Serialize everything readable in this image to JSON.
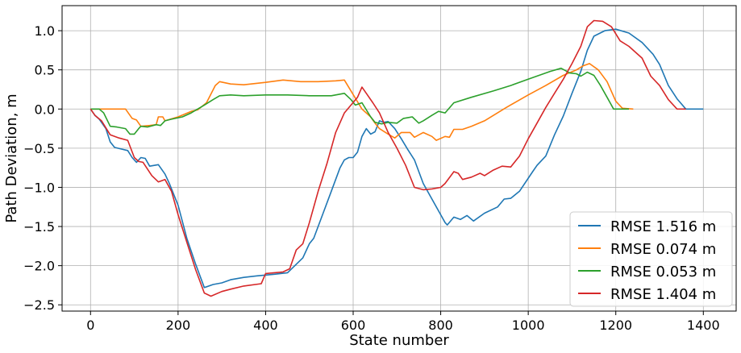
{
  "chart_data": {
    "type": "line",
    "title": "",
    "xlabel": "State number",
    "ylabel": "Path Deviation, m",
    "xlim": [
      -65,
      1475
    ],
    "ylim": [
      -2.58,
      1.32
    ],
    "xticks": [
      0,
      200,
      400,
      600,
      800,
      1000,
      1200,
      1400
    ],
    "yticks": [
      1.0,
      0.5,
      0.0,
      -0.5,
      -1.0,
      -1.5,
      -2.0,
      -2.5
    ],
    "xtick_labels": [
      "0",
      "200",
      "400",
      "600",
      "800",
      "1000",
      "1200",
      "1400"
    ],
    "ytick_labels": [
      "1.0",
      "0.5",
      "0.0",
      "−0.5",
      "−1.0",
      "−1.5",
      "−2.0",
      "−2.5"
    ],
    "grid": true,
    "legend_position": "bottom-right",
    "series": [
      {
        "name": "RMSE 1.516 m",
        "color": "#1f77b4",
        "points": [
          [
            0,
            0
          ],
          [
            10,
            -0.08
          ],
          [
            20,
            -0.13
          ],
          [
            35,
            -0.25
          ],
          [
            45,
            -0.42
          ],
          [
            55,
            -0.49
          ],
          [
            85,
            -0.53
          ],
          [
            95,
            -0.62
          ],
          [
            105,
            -0.68
          ],
          [
            115,
            -0.62
          ],
          [
            125,
            -0.63
          ],
          [
            135,
            -0.73
          ],
          [
            155,
            -0.71
          ],
          [
            170,
            -0.83
          ],
          [
            180,
            -0.95
          ],
          [
            200,
            -1.23
          ],
          [
            220,
            -1.65
          ],
          [
            240,
            -1.98
          ],
          [
            260,
            -2.28
          ],
          [
            280,
            -2.24
          ],
          [
            300,
            -2.22
          ],
          [
            320,
            -2.18
          ],
          [
            350,
            -2.15
          ],
          [
            380,
            -2.13
          ],
          [
            420,
            -2.11
          ],
          [
            450,
            -2.09
          ],
          [
            485,
            -1.9
          ],
          [
            500,
            -1.72
          ],
          [
            510,
            -1.65
          ],
          [
            530,
            -1.35
          ],
          [
            550,
            -1.05
          ],
          [
            570,
            -0.75
          ],
          [
            580,
            -0.65
          ],
          [
            590,
            -0.62
          ],
          [
            600,
            -0.62
          ],
          [
            610,
            -0.55
          ],
          [
            620,
            -0.35
          ],
          [
            630,
            -0.25
          ],
          [
            640,
            -0.32
          ],
          [
            650,
            -0.29
          ],
          [
            660,
            -0.15
          ],
          [
            670,
            -0.17
          ],
          [
            680,
            -0.16
          ],
          [
            695,
            -0.25
          ],
          [
            710,
            -0.38
          ],
          [
            725,
            -0.52
          ],
          [
            740,
            -0.65
          ],
          [
            760,
            -0.95
          ],
          [
            780,
            -1.15
          ],
          [
            800,
            -1.35
          ],
          [
            810,
            -1.45
          ],
          [
            815,
            -1.48
          ],
          [
            830,
            -1.38
          ],
          [
            845,
            -1.41
          ],
          [
            860,
            -1.36
          ],
          [
            875,
            -1.43
          ],
          [
            900,
            -1.33
          ],
          [
            930,
            -1.25
          ],
          [
            945,
            -1.15
          ],
          [
            960,
            -1.14
          ],
          [
            980,
            -1.05
          ],
          [
            1010,
            -0.8
          ],
          [
            1020,
            -0.72
          ],
          [
            1040,
            -0.6
          ],
          [
            1060,
            -0.33
          ],
          [
            1080,
            -0.09
          ],
          [
            1100,
            0.2
          ],
          [
            1120,
            0.48
          ],
          [
            1135,
            0.75
          ],
          [
            1150,
            0.93
          ],
          [
            1175,
            1.0
          ],
          [
            1200,
            1.02
          ],
          [
            1230,
            0.97
          ],
          [
            1260,
            0.85
          ],
          [
            1285,
            0.7
          ],
          [
            1300,
            0.57
          ],
          [
            1320,
            0.3
          ],
          [
            1340,
            0.13
          ],
          [
            1360,
            0.0
          ],
          [
            1400,
            0.0
          ]
        ]
      },
      {
        "name": "RMSE 0.074 m",
        "color": "#ff7f0e",
        "points": [
          [
            0,
            0
          ],
          [
            80,
            0
          ],
          [
            95,
            -0.12
          ],
          [
            105,
            -0.14
          ],
          [
            115,
            -0.22
          ],
          [
            135,
            -0.21
          ],
          [
            150,
            -0.2
          ],
          [
            155,
            -0.1
          ],
          [
            165,
            -0.1
          ],
          [
            170,
            -0.15
          ],
          [
            200,
            -0.1
          ],
          [
            230,
            -0.03
          ],
          [
            245,
            -0.01
          ],
          [
            265,
            0.08
          ],
          [
            285,
            0.3
          ],
          [
            295,
            0.35
          ],
          [
            320,
            0.32
          ],
          [
            350,
            0.31
          ],
          [
            400,
            0.34
          ],
          [
            440,
            0.37
          ],
          [
            480,
            0.35
          ],
          [
            520,
            0.35
          ],
          [
            560,
            0.36
          ],
          [
            580,
            0.37
          ],
          [
            620,
            0.0
          ],
          [
            640,
            -0.1
          ],
          [
            650,
            -0.18
          ],
          [
            660,
            -0.25
          ],
          [
            680,
            -0.32
          ],
          [
            695,
            -0.37
          ],
          [
            710,
            -0.3
          ],
          [
            730,
            -0.3
          ],
          [
            740,
            -0.36
          ],
          [
            760,
            -0.3
          ],
          [
            780,
            -0.35
          ],
          [
            790,
            -0.4
          ],
          [
            810,
            -0.35
          ],
          [
            820,
            -0.36
          ],
          [
            830,
            -0.26
          ],
          [
            850,
            -0.26
          ],
          [
            870,
            -0.22
          ],
          [
            900,
            -0.15
          ],
          [
            950,
            0.02
          ],
          [
            1000,
            0.18
          ],
          [
            1040,
            0.3
          ],
          [
            1080,
            0.43
          ],
          [
            1110,
            0.5
          ],
          [
            1125,
            0.55
          ],
          [
            1140,
            0.58
          ],
          [
            1160,
            0.5
          ],
          [
            1180,
            0.35
          ],
          [
            1200,
            0.1
          ],
          [
            1215,
            0.01
          ],
          [
            1240,
            0.0
          ]
        ]
      },
      {
        "name": "RMSE 0.053 m",
        "color": "#2ca02c",
        "points": [
          [
            0,
            0
          ],
          [
            20,
            0
          ],
          [
            30,
            -0.05
          ],
          [
            45,
            -0.22
          ],
          [
            60,
            -0.23
          ],
          [
            80,
            -0.25
          ],
          [
            90,
            -0.32
          ],
          [
            100,
            -0.32
          ],
          [
            110,
            -0.25
          ],
          [
            115,
            -0.22
          ],
          [
            130,
            -0.23
          ],
          [
            150,
            -0.2
          ],
          [
            160,
            -0.21
          ],
          [
            170,
            -0.15
          ],
          [
            185,
            -0.13
          ],
          [
            210,
            -0.1
          ],
          [
            230,
            -0.05
          ],
          [
            260,
            0.05
          ],
          [
            280,
            0.12
          ],
          [
            295,
            0.17
          ],
          [
            320,
            0.18
          ],
          [
            350,
            0.17
          ],
          [
            400,
            0.18
          ],
          [
            450,
            0.18
          ],
          [
            500,
            0.17
          ],
          [
            550,
            0.17
          ],
          [
            580,
            0.2
          ],
          [
            595,
            0.12
          ],
          [
            605,
            0.05
          ],
          [
            620,
            0.08
          ],
          [
            640,
            -0.1
          ],
          [
            650,
            -0.17
          ],
          [
            665,
            -0.19
          ],
          [
            680,
            -0.17
          ],
          [
            700,
            -0.18
          ],
          [
            715,
            -0.12
          ],
          [
            735,
            -0.1
          ],
          [
            750,
            -0.18
          ],
          [
            760,
            -0.15
          ],
          [
            780,
            -0.08
          ],
          [
            795,
            -0.03
          ],
          [
            810,
            -0.05
          ],
          [
            830,
            0.08
          ],
          [
            870,
            0.15
          ],
          [
            920,
            0.23
          ],
          [
            960,
            0.3
          ],
          [
            1000,
            0.38
          ],
          [
            1050,
            0.48
          ],
          [
            1075,
            0.52
          ],
          [
            1095,
            0.46
          ],
          [
            1110,
            0.45
          ],
          [
            1120,
            0.42
          ],
          [
            1135,
            0.47
          ],
          [
            1150,
            0.43
          ],
          [
            1165,
            0.3
          ],
          [
            1180,
            0.15
          ],
          [
            1195,
            0.0
          ],
          [
            1230,
            0.0
          ]
        ]
      },
      {
        "name": "RMSE 1.404 m",
        "color": "#d62728",
        "points": [
          [
            0,
            0
          ],
          [
            10,
            -0.08
          ],
          [
            25,
            -0.15
          ],
          [
            45,
            -0.33
          ],
          [
            65,
            -0.37
          ],
          [
            85,
            -0.4
          ],
          [
            100,
            -0.62
          ],
          [
            110,
            -0.67
          ],
          [
            120,
            -0.68
          ],
          [
            140,
            -0.85
          ],
          [
            155,
            -0.93
          ],
          [
            170,
            -0.9
          ],
          [
            185,
            -1.05
          ],
          [
            200,
            -1.35
          ],
          [
            220,
            -1.7
          ],
          [
            240,
            -2.05
          ],
          [
            260,
            -2.35
          ],
          [
            275,
            -2.39
          ],
          [
            300,
            -2.33
          ],
          [
            320,
            -2.3
          ],
          [
            350,
            -2.26
          ],
          [
            390,
            -2.23
          ],
          [
            400,
            -2.1
          ],
          [
            440,
            -2.08
          ],
          [
            455,
            -2.04
          ],
          [
            470,
            -1.8
          ],
          [
            485,
            -1.72
          ],
          [
            500,
            -1.45
          ],
          [
            520,
            -1.05
          ],
          [
            540,
            -0.7
          ],
          [
            560,
            -0.3
          ],
          [
            580,
            -0.05
          ],
          [
            595,
            0.05
          ],
          [
            610,
            0.15
          ],
          [
            620,
            0.28
          ],
          [
            630,
            0.2
          ],
          [
            645,
            0.08
          ],
          [
            660,
            -0.05
          ],
          [
            680,
            -0.3
          ],
          [
            700,
            -0.5
          ],
          [
            720,
            -0.72
          ],
          [
            740,
            -1.0
          ],
          [
            760,
            -1.03
          ],
          [
            780,
            -1.02
          ],
          [
            800,
            -1.0
          ],
          [
            810,
            -0.95
          ],
          [
            830,
            -0.8
          ],
          [
            840,
            -0.82
          ],
          [
            850,
            -0.9
          ],
          [
            870,
            -0.87
          ],
          [
            890,
            -0.82
          ],
          [
            900,
            -0.85
          ],
          [
            920,
            -0.78
          ],
          [
            940,
            -0.73
          ],
          [
            960,
            -0.74
          ],
          [
            980,
            -0.6
          ],
          [
            1000,
            -0.38
          ],
          [
            1020,
            -0.18
          ],
          [
            1040,
            0.02
          ],
          [
            1060,
            0.2
          ],
          [
            1080,
            0.38
          ],
          [
            1100,
            0.58
          ],
          [
            1120,
            0.8
          ],
          [
            1135,
            1.05
          ],
          [
            1150,
            1.13
          ],
          [
            1170,
            1.12
          ],
          [
            1190,
            1.05
          ],
          [
            1210,
            0.87
          ],
          [
            1230,
            0.8
          ],
          [
            1260,
            0.65
          ],
          [
            1280,
            0.42
          ],
          [
            1300,
            0.3
          ],
          [
            1320,
            0.12
          ],
          [
            1340,
            0.0
          ],
          [
            1360,
            0.0
          ]
        ]
      }
    ]
  }
}
